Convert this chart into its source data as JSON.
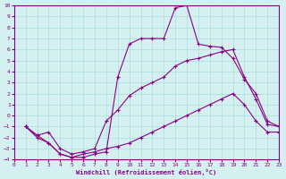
{
  "xlabel": "Windchill (Refroidissement éolien,°C)",
  "background_color": "#d4f0f0",
  "grid_color": "#aadddd",
  "line_color": "#880088",
  "xlim": [
    0,
    23
  ],
  "ylim": [
    -4,
    10
  ],
  "xticks": [
    0,
    1,
    2,
    3,
    4,
    5,
    6,
    7,
    8,
    9,
    10,
    11,
    12,
    13,
    14,
    15,
    16,
    17,
    18,
    19,
    20,
    21,
    22,
    23
  ],
  "yticks": [
    -4,
    -3,
    -2,
    -1,
    0,
    1,
    2,
    3,
    4,
    5,
    6,
    7,
    8,
    9,
    10
  ],
  "curve1_x": [
    1,
    2,
    3,
    4,
    5,
    6,
    7,
    8,
    9,
    10,
    11,
    12,
    13,
    14,
    15,
    16,
    17,
    18,
    19,
    20,
    21,
    22,
    23
  ],
  "curve1_y": [
    -1,
    -2,
    -2.5,
    -3.5,
    -3.8,
    -3.8,
    -3.5,
    -3.3,
    3.5,
    6.5,
    7.0,
    7.0,
    7.0,
    9.8,
    10.0,
    6.5,
    6.3,
    6.2,
    5.2,
    3.3,
    2.0,
    -0.5,
    -1.0
  ],
  "curve2_x": [
    1,
    2,
    3,
    4,
    5,
    6,
    7,
    8,
    9,
    10,
    11,
    12,
    13,
    14,
    15,
    16,
    17,
    18,
    19,
    20,
    21,
    22,
    23
  ],
  "curve2_y": [
    -1,
    -1.8,
    -1.5,
    -3.0,
    -3.5,
    -3.3,
    -3.0,
    -0.5,
    0.5,
    1.8,
    2.5,
    3.0,
    3.5,
    4.5,
    5.0,
    5.2,
    5.5,
    5.8,
    6.0,
    3.5,
    1.5,
    -0.8,
    -1.0
  ],
  "curve3_x": [
    1,
    2,
    3,
    4,
    5,
    6,
    7,
    8,
    9,
    10,
    11,
    12,
    13,
    14,
    15,
    16,
    17,
    18,
    19,
    20,
    21,
    22,
    23
  ],
  "curve3_y": [
    -1,
    -1.8,
    -2.5,
    -3.5,
    -3.8,
    -3.5,
    -3.3,
    -3.0,
    -2.8,
    -2.5,
    -2.0,
    -1.5,
    -1.0,
    -0.5,
    0.0,
    0.5,
    1.0,
    1.5,
    2.0,
    1.0,
    -0.5,
    -1.5,
    -1.5
  ]
}
